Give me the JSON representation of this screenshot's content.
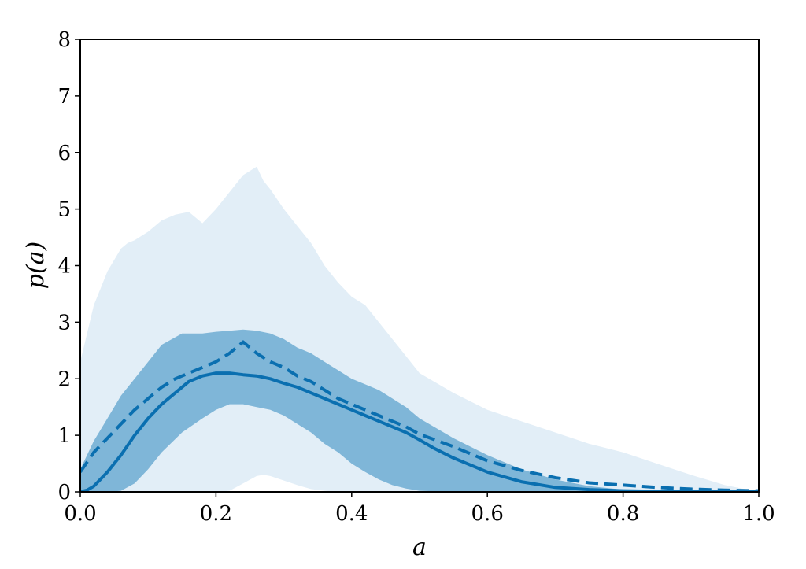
{
  "chart_data": {
    "type": "line",
    "title": "",
    "xlabel": "a",
    "ylabel": "p(a)",
    "xlim": [
      0.0,
      1.0
    ],
    "ylim": [
      0,
      8
    ],
    "xticks": [
      "0.0",
      "0.2",
      "0.4",
      "0.6",
      "0.8",
      "1.0"
    ],
    "yticks": [
      "0",
      "1",
      "2",
      "3",
      "4",
      "5",
      "6",
      "7",
      "8"
    ],
    "grid": false,
    "legend": "none",
    "colors": {
      "line": "#0a6fb0",
      "band_inner": "#7fb6d8",
      "band_outer": "#e2eef7",
      "axis": "#000000"
    },
    "bands": [
      {
        "level": "outer",
        "x": [
          0.0,
          0.01,
          0.02,
          0.03,
          0.04,
          0.05,
          0.06,
          0.07,
          0.08,
          0.1,
          0.12,
          0.14,
          0.16,
          0.18,
          0.2,
          0.22,
          0.24,
          0.26,
          0.27,
          0.28,
          0.3,
          0.32,
          0.34,
          0.36,
          0.38,
          0.4,
          0.42,
          0.44,
          0.46,
          0.48,
          0.5,
          0.55,
          0.6,
          0.65,
          0.7,
          0.75,
          0.8,
          0.85,
          0.9,
          0.95,
          1.0
        ],
        "lower": [
          0,
          0,
          0,
          0,
          0,
          0,
          0,
          0,
          0,
          0,
          0,
          0,
          0,
          0,
          0,
          0.02,
          0.15,
          0.28,
          0.3,
          0.28,
          0.2,
          0.12,
          0.05,
          0.02,
          0,
          0,
          0,
          0,
          0,
          0,
          0,
          0,
          0,
          0,
          0,
          0,
          0,
          0,
          0,
          0,
          0
        ],
        "upper": [
          2.3,
          2.8,
          3.3,
          3.6,
          3.9,
          4.1,
          4.3,
          4.4,
          4.45,
          4.6,
          4.8,
          4.9,
          4.95,
          4.75,
          5.0,
          5.3,
          5.6,
          5.75,
          5.5,
          5.35,
          5.0,
          4.7,
          4.4,
          4.0,
          3.7,
          3.45,
          3.3,
          3.0,
          2.7,
          2.4,
          2.1,
          1.75,
          1.45,
          1.25,
          1.05,
          0.85,
          0.7,
          0.5,
          0.3,
          0.12,
          0.0
        ]
      },
      {
        "level": "inner",
        "x": [
          0.0,
          0.02,
          0.04,
          0.06,
          0.08,
          0.1,
          0.12,
          0.15,
          0.18,
          0.2,
          0.22,
          0.24,
          0.26,
          0.28,
          0.3,
          0.32,
          0.34,
          0.36,
          0.38,
          0.4,
          0.42,
          0.44,
          0.46,
          0.48,
          0.5,
          0.55,
          0.6,
          0.65,
          0.7,
          0.75,
          0.8,
          0.85,
          0.9,
          1.0
        ],
        "lower": [
          0,
          0,
          0,
          0.02,
          0.15,
          0.4,
          0.7,
          1.05,
          1.3,
          1.45,
          1.55,
          1.55,
          1.5,
          1.45,
          1.35,
          1.2,
          1.05,
          0.85,
          0.7,
          0.5,
          0.35,
          0.22,
          0.12,
          0.06,
          0.02,
          0,
          0,
          0,
          0,
          0,
          0,
          0,
          0,
          0
        ],
        "upper": [
          0.4,
          0.9,
          1.3,
          1.7,
          2.0,
          2.3,
          2.6,
          2.8,
          2.8,
          2.83,
          2.85,
          2.87,
          2.85,
          2.8,
          2.7,
          2.55,
          2.45,
          2.3,
          2.15,
          2.0,
          1.9,
          1.8,
          1.65,
          1.5,
          1.3,
          0.95,
          0.65,
          0.4,
          0.22,
          0.1,
          0.04,
          0.01,
          0,
          0
        ]
      }
    ],
    "series": [
      {
        "style": "solid",
        "x": [
          0.0,
          0.01,
          0.02,
          0.04,
          0.06,
          0.08,
          0.1,
          0.12,
          0.14,
          0.16,
          0.18,
          0.2,
          0.22,
          0.24,
          0.26,
          0.28,
          0.3,
          0.32,
          0.34,
          0.36,
          0.38,
          0.4,
          0.42,
          0.44,
          0.46,
          0.48,
          0.5,
          0.52,
          0.55,
          0.6,
          0.65,
          0.7,
          0.75,
          0.8,
          0.85,
          0.9,
          0.95,
          1.0
        ],
        "y": [
          0.0,
          0.03,
          0.1,
          0.35,
          0.65,
          1.0,
          1.3,
          1.55,
          1.75,
          1.95,
          2.05,
          2.1,
          2.1,
          2.07,
          2.05,
          2.0,
          1.92,
          1.85,
          1.75,
          1.65,
          1.55,
          1.45,
          1.35,
          1.25,
          1.15,
          1.05,
          0.92,
          0.78,
          0.6,
          0.35,
          0.18,
          0.08,
          0.04,
          0.02,
          0.01,
          0.0,
          0.0,
          0.0
        ]
      },
      {
        "style": "dashed",
        "x": [
          0.0,
          0.02,
          0.04,
          0.06,
          0.08,
          0.1,
          0.12,
          0.14,
          0.16,
          0.18,
          0.2,
          0.22,
          0.24,
          0.25,
          0.26,
          0.28,
          0.3,
          0.32,
          0.34,
          0.36,
          0.38,
          0.4,
          0.42,
          0.44,
          0.46,
          0.48,
          0.5,
          0.55,
          0.6,
          0.65,
          0.7,
          0.75,
          0.8,
          0.85,
          0.9,
          0.95,
          1.0
        ],
        "y": [
          0.35,
          0.7,
          0.95,
          1.2,
          1.45,
          1.65,
          1.85,
          2.0,
          2.1,
          2.2,
          2.3,
          2.45,
          2.65,
          2.55,
          2.45,
          2.3,
          2.2,
          2.05,
          1.95,
          1.8,
          1.65,
          1.55,
          1.45,
          1.35,
          1.25,
          1.15,
          1.02,
          0.8,
          0.55,
          0.38,
          0.25,
          0.16,
          0.12,
          0.08,
          0.05,
          0.03,
          0.02
        ]
      }
    ]
  }
}
